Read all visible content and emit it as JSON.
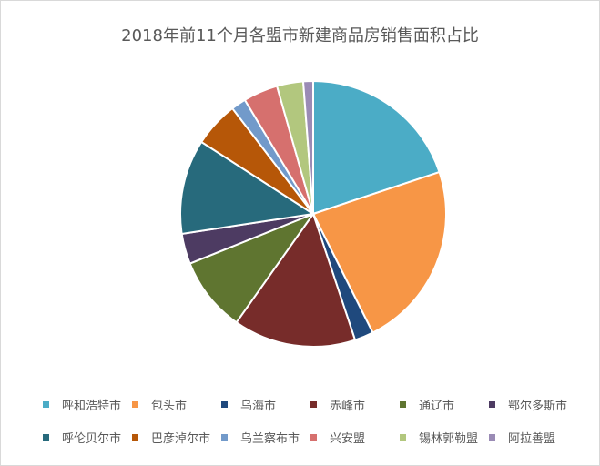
{
  "chart_data": {
    "type": "pie",
    "title": "2018年前11个月各盟市新建商品房销售面积占比",
    "legend_position": "bottom",
    "categories": [
      "呼和浩特市",
      "包头市",
      "乌海市",
      "赤峰市",
      "通辽市",
      "鄂尔多斯市",
      "呼伦贝尔市",
      "巴彦淖尔市",
      "乌兰察布市",
      "兴安盟",
      "锡林郭勒盟",
      "阿拉善盟"
    ],
    "values": [
      19.9,
      22.7,
      2.3,
      14.9,
      9.1,
      3.7,
      11.5,
      5.5,
      1.8,
      4.2,
      3.2,
      1.2
    ],
    "colors": [
      "#4bacc6",
      "#f79646",
      "#1f497d",
      "#772c2a",
      "#5f7530",
      "#4d3b62",
      "#276a7c",
      "#b65708",
      "#729aca",
      "#d6706e",
      "#b2c77e",
      "#9a8bb5"
    ]
  }
}
